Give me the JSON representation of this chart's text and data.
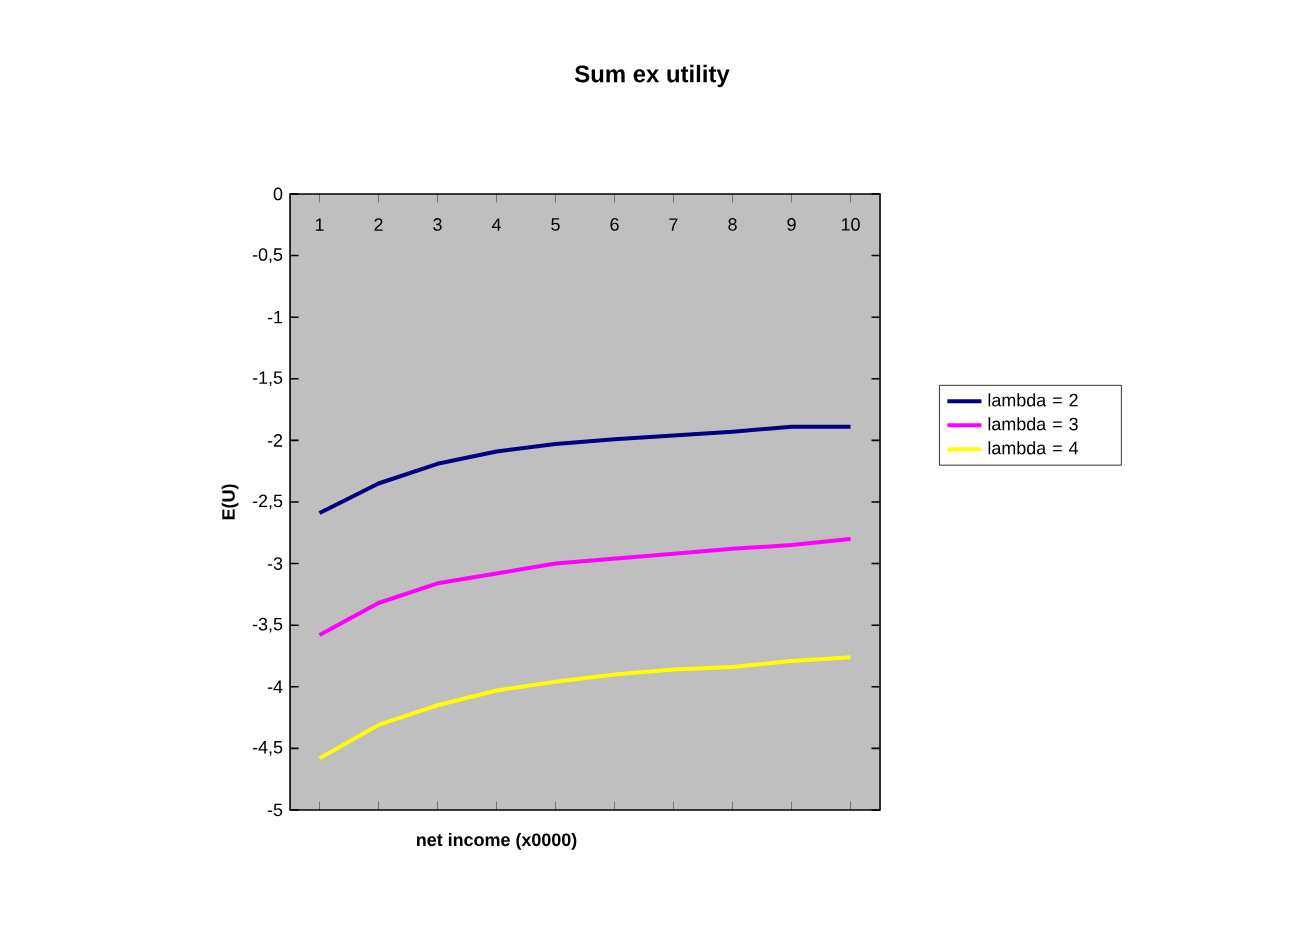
{
  "chart_data": {
    "type": "line",
    "title": "Sum ex utility",
    "xlabel": "net income (x0000)",
    "ylabel": "E(U)",
    "categories": [
      "1",
      "2",
      "3",
      "4",
      "5",
      "6",
      "7",
      "8",
      "9",
      "10"
    ],
    "series": [
      {
        "name": "lambda = 2",
        "color": "#000080",
        "values": [
          -2.59,
          -2.35,
          -2.19,
          -2.09,
          -2.03,
          -1.99,
          -1.96,
          -1.93,
          -1.89,
          -1.89
        ]
      },
      {
        "name": "lambda = 3",
        "color": "#ff00ff",
        "values": [
          -3.58,
          -3.32,
          -3.16,
          -3.08,
          -3.0,
          -2.96,
          -2.92,
          -2.88,
          -2.85,
          -2.8
        ]
      },
      {
        "name": "lambda = 4",
        "color": "#ffff00",
        "values": [
          -4.58,
          -4.31,
          -4.15,
          -4.03,
          -3.96,
          -3.9,
          -3.86,
          -3.84,
          -3.79,
          -3.76
        ]
      }
    ],
    "ylim": [
      -5,
      0
    ],
    "yticks": [
      0,
      {
        "value": -0.5,
        "label": "-0,5"
      },
      -1,
      {
        "value": -1.5,
        "label": "-1,5"
      },
      -2,
      {
        "value": -2.5,
        "label": "-2,5"
      },
      -3,
      {
        "value": -3.5,
        "label": "-3,5"
      },
      -4,
      {
        "value": -4.5,
        "label": "-4,5"
      },
      -5
    ],
    "grid": false,
    "legend": "right",
    "marker": "none",
    "line_style": "solid"
  }
}
